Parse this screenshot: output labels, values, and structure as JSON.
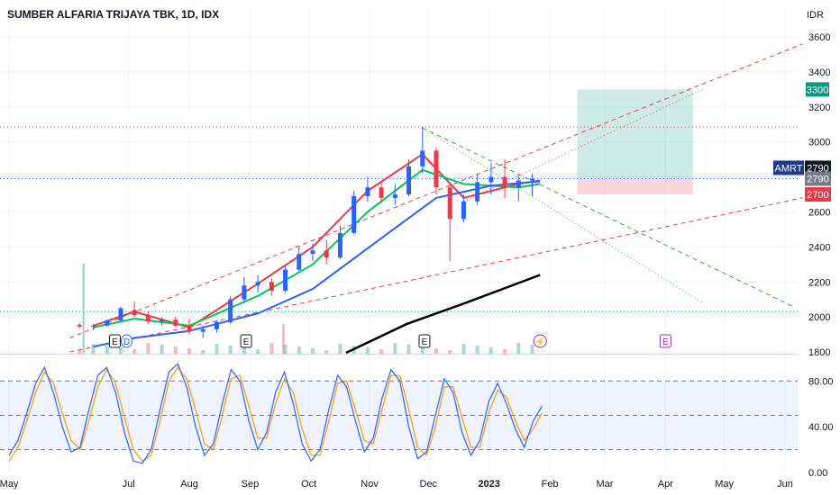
{
  "chart_data": {
    "type": "candlestick",
    "title": "SUMBER ALFARIA TRIJAYA TBK, 1D, IDX",
    "currency": "IDR",
    "y_ticks": [
      1800,
      2000,
      2200,
      2400,
      2600,
      2800,
      3000,
      3200,
      3400,
      3600
    ],
    "price_range": [
      1790,
      3780
    ],
    "x_labels": [
      "May",
      "Jul",
      "Aug",
      "Sep",
      "Oct",
      "Nov",
      "Dec",
      "2023",
      "Feb",
      "Mar",
      "Apr",
      "May",
      "Jun"
    ],
    "x_labels_bold": [
      "2023"
    ],
    "label_dates": [
      "2022-05-01",
      "2022-07-01",
      "2022-08-01",
      "2022-09-01",
      "2022-10-01",
      "2022-11-01",
      "2022-12-01",
      "2023-01-01",
      "2023-02-01",
      "2023-03-01",
      "2023-04-01",
      "2023-05-01",
      "2023-06-01"
    ],
    "candles": [
      [
        "2022-06-06",
        1955,
        1965,
        1935,
        1945
      ],
      [
        "2022-06-13",
        1945,
        1960,
        1925,
        1950
      ],
      [
        "2022-06-20",
        1950,
        1985,
        1945,
        1980
      ],
      [
        "2022-06-27",
        1980,
        2060,
        1975,
        2050
      ],
      [
        "2022-07-04",
        2040,
        2090,
        2000,
        2010
      ],
      [
        "2022-07-11",
        2010,
        2030,
        1960,
        1975
      ],
      [
        "2022-07-18",
        1975,
        2000,
        1950,
        1985
      ],
      [
        "2022-07-25",
        1985,
        2000,
        1940,
        1950
      ],
      [
        "2022-08-01",
        1950,
        1990,
        1900,
        1915
      ],
      [
        "2022-08-08",
        1915,
        1950,
        1880,
        1930
      ],
      [
        "2022-08-15",
        1930,
        1980,
        1910,
        1970
      ],
      [
        "2022-08-22",
        1970,
        2120,
        1960,
        2100
      ],
      [
        "2022-08-29",
        2100,
        2230,
        2080,
        2180
      ],
      [
        "2022-09-05",
        2180,
        2240,
        2140,
        2200
      ],
      [
        "2022-09-12",
        2200,
        2220,
        2120,
        2150
      ],
      [
        "2022-09-19",
        2150,
        2300,
        2140,
        2270
      ],
      [
        "2022-09-26",
        2270,
        2400,
        2260,
        2360
      ],
      [
        "2022-10-03",
        2360,
        2420,
        2320,
        2380
      ],
      [
        "2022-10-10",
        2380,
        2440,
        2300,
        2340
      ],
      [
        "2022-10-17",
        2340,
        2520,
        2330,
        2480
      ],
      [
        "2022-10-24",
        2480,
        2720,
        2470,
        2690
      ],
      [
        "2022-10-31",
        2690,
        2800,
        2660,
        2740
      ],
      [
        "2022-11-07",
        2740,
        2780,
        2650,
        2680
      ],
      [
        "2022-11-14",
        2680,
        2760,
        2640,
        2700
      ],
      [
        "2022-11-21",
        2700,
        2900,
        2690,
        2860
      ],
      [
        "2022-11-28",
        2860,
        3090,
        2820,
        2950
      ],
      [
        "2022-12-05",
        2950,
        2970,
        2700,
        2740
      ],
      [
        "2022-12-12",
        2740,
        2760,
        2320,
        2560
      ],
      [
        "2022-12-19",
        2560,
        2700,
        2540,
        2660
      ],
      [
        "2022-12-26",
        2660,
        2820,
        2640,
        2770
      ],
      [
        "2023-01-02",
        2770,
        2880,
        2700,
        2800
      ],
      [
        "2023-01-09",
        2800,
        2900,
        2680,
        2740
      ],
      [
        "2023-01-16",
        2740,
        2810,
        2660,
        2780
      ],
      [
        "2023-01-23",
        2780,
        2820,
        2690,
        2790
      ]
    ],
    "moving_averages": [
      {
        "color": "#f23645",
        "points": [
          [
            "2022-06-13",
            1950
          ],
          [
            "2022-07-04",
            2030
          ],
          [
            "2022-08-01",
            1940
          ],
          [
            "2022-09-05",
            2190
          ],
          [
            "2022-10-03",
            2400
          ],
          [
            "2022-10-31",
            2720
          ],
          [
            "2022-11-28",
            2930
          ],
          [
            "2022-12-19",
            2680
          ],
          [
            "2023-01-16",
            2760
          ],
          [
            "2023-01-27",
            2780
          ]
        ]
      },
      {
        "color": "#00c853",
        "points": [
          [
            "2022-06-13",
            1940
          ],
          [
            "2022-07-04",
            1990
          ],
          [
            "2022-08-01",
            1950
          ],
          [
            "2022-09-05",
            2120
          ],
          [
            "2022-10-03",
            2300
          ],
          [
            "2022-10-31",
            2600
          ],
          [
            "2022-11-28",
            2840
          ],
          [
            "2022-12-19",
            2760
          ],
          [
            "2023-01-16",
            2740
          ],
          [
            "2023-01-27",
            2760
          ]
        ]
      },
      {
        "color": "#2962ff",
        "points": [
          [
            "2022-06-13",
            1830
          ],
          [
            "2022-07-04",
            1880
          ],
          [
            "2022-08-01",
            1920
          ],
          [
            "2022-09-05",
            2020
          ],
          [
            "2022-10-03",
            2160
          ],
          [
            "2022-11-07",
            2450
          ],
          [
            "2022-12-05",
            2680
          ],
          [
            "2023-01-02",
            2750
          ],
          [
            "2023-01-27",
            2775
          ]
        ]
      },
      {
        "color": "#000000",
        "points": [
          [
            "2022-10-20",
            1795
          ],
          [
            "2022-11-20",
            1960
          ],
          [
            "2022-12-20",
            2080
          ],
          [
            "2023-01-27",
            2240
          ]
        ]
      }
    ],
    "horizontal_levels": [
      {
        "price": 3085,
        "color": "#f23645",
        "style": "dotted"
      },
      {
        "price": 2790,
        "color": "#2962ff",
        "style": "dotted"
      },
      {
        "price": 2030,
        "color": "#089981",
        "style": "dotted"
      }
    ],
    "trend_lines": [
      {
        "from": [
          "2022-06-01",
          1880
        ],
        "to": [
          "2023-06-10",
          3560
        ],
        "color": "#f23645",
        "style": "dashed"
      },
      {
        "from": [
          "2022-06-01",
          1800
        ],
        "to": [
          "2023-06-10",
          2680
        ],
        "color": "#f23645",
        "style": "dashed"
      },
      {
        "from": [
          "2022-11-28",
          3080
        ],
        "to": [
          "2023-06-05",
          2060
        ],
        "color": "#43a047",
        "style": "dashed"
      },
      {
        "from": [
          "2022-11-28",
          3080
        ],
        "to": [
          "2023-04-20",
          2080
        ],
        "color": "#43a047",
        "style": "dotted"
      },
      {
        "from": [
          "2022-12-19",
          2660
        ],
        "to": [
          "2023-04-20",
          3300
        ],
        "color": "#f23645",
        "style": "dotted"
      }
    ],
    "position_tool": {
      "start": "2023-02-15",
      "end": "2023-04-15",
      "entry": 2790,
      "target": 3300,
      "stop": 2700,
      "target_label": "3300",
      "stop_label": "2700"
    },
    "price_tags": [
      {
        "symbol": "AMRT",
        "value": "2790",
        "price": 2852,
        "color": "#131722"
      },
      {
        "value": "2790",
        "price": 2790,
        "color": "#787b86"
      },
      {
        "value": "2700",
        "price": 2700,
        "color": "#f23645"
      }
    ],
    "events": [
      {
        "label": "E",
        "date": "2022-06-24"
      },
      {
        "label": "D",
        "date": "2022-06-30"
      },
      {
        "label": "E",
        "date": "2022-08-30"
      },
      {
        "label": "E",
        "date": "2022-11-29"
      },
      {
        "label": "⚡",
        "date": "2023-01-27"
      },
      {
        "label": "E",
        "date": "2023-04-01"
      }
    ],
    "oscillator": {
      "y_ticks": [
        "0.00",
        "40.00",
        "80.00"
      ],
      "levels": [
        80,
        50,
        20
      ],
      "k_color": "#2962ff",
      "d_color": "#ff9800",
      "k": [
        15,
        28,
        52,
        78,
        92,
        70,
        40,
        18,
        22,
        55,
        85,
        92,
        70,
        35,
        10,
        8,
        20,
        55,
        88,
        95,
        75,
        40,
        15,
        25,
        60,
        90,
        80,
        45,
        20,
        35,
        70,
        88,
        60,
        25,
        10,
        20,
        55,
        85,
        75,
        45,
        18,
        30,
        65,
        90,
        80,
        40,
        12,
        18,
        50,
        82,
        70,
        35,
        15,
        28,
        62,
        78,
        60,
        38,
        22,
        45,
        58
      ],
      "d": [
        10,
        22,
        45,
        70,
        88,
        78,
        52,
        28,
        20,
        45,
        75,
        90,
        78,
        48,
        20,
        10,
        15,
        45,
        80,
        92,
        82,
        55,
        25,
        20,
        50,
        82,
        85,
        58,
        30,
        30,
        60,
        82,
        70,
        38,
        15,
        15,
        45,
        78,
        80,
        55,
        28,
        25,
        55,
        85,
        85,
        55,
        22,
        15,
        40,
        75,
        75,
        48,
        22,
        22,
        52,
        72,
        66,
        45,
        28,
        38,
        52
      ]
    }
  }
}
